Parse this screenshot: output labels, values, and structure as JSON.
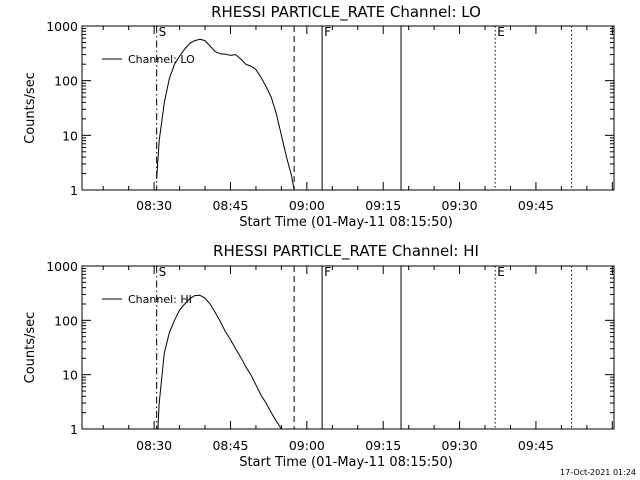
{
  "stamp": "17-Oct-2021 01:24",
  "chart_data": [
    {
      "type": "line",
      "title": "RHESSI PARTICLE_RATE Channel: LO",
      "xlabel": "Start Time (01-May-11 08:15:50)",
      "ylabel": "Counts/sec",
      "yscale": "log",
      "ylim": [
        1,
        1000
      ],
      "xlim": [
        "08:15:50",
        "10:00:20"
      ],
      "x_ticks": [
        "08:30",
        "08:45",
        "09:00",
        "09:15",
        "09:30",
        "09:45"
      ],
      "y_ticks": [
        "1",
        "10",
        "100",
        "1000"
      ],
      "legend": {
        "label": "Channel: LO",
        "position": "top-left"
      },
      "markers": [
        {
          "label": "S",
          "time": "08:30:30",
          "style": "dash-dot"
        },
        {
          "label": "",
          "time": "08:57:30",
          "style": "dashed"
        },
        {
          "label": "F",
          "time": "09:03:00",
          "style": "solid"
        },
        {
          "label": "",
          "time": "09:18:30",
          "style": "solid"
        },
        {
          "label": "E",
          "time": "09:37:00",
          "style": "dotted"
        },
        {
          "label": "",
          "time": "09:52:00",
          "style": "dotted"
        }
      ],
      "series": [
        {
          "x": [
            "08:30:30",
            "08:31:00",
            "08:32:00",
            "08:33:00",
            "08:34:00",
            "08:35:00",
            "08:36:00",
            "08:37:00",
            "08:38:00",
            "08:39:00",
            "08:40:00",
            "08:41:00",
            "08:42:00",
            "08:43:00",
            "08:44:00",
            "08:45:00",
            "08:46:00",
            "08:47:00",
            "08:48:00",
            "08:49:00",
            "08:50:00",
            "08:51:00",
            "08:52:00",
            "08:53:00",
            "08:54:00",
            "08:55:00",
            "08:56:00",
            "08:57:00",
            "08:57:30"
          ],
          "values": [
            1.6,
            8,
            40,
            110,
            200,
            280,
            380,
            480,
            540,
            570,
            540,
            430,
            340,
            310,
            305,
            290,
            300,
            250,
            200,
            185,
            160,
            115,
            78,
            50,
            25,
            10,
            4,
            1.8,
            1
          ]
        }
      ]
    },
    {
      "type": "line",
      "title": "RHESSI PARTICLE_RATE Channel: HI",
      "xlabel": "Start Time (01-May-11 08:15:50)",
      "ylabel": "Counts/sec",
      "yscale": "log",
      "ylim": [
        1,
        1000
      ],
      "xlim": [
        "08:15:50",
        "10:00:20"
      ],
      "x_ticks": [
        "08:30",
        "08:45",
        "09:00",
        "09:15",
        "09:30",
        "09:45"
      ],
      "y_ticks": [
        "1",
        "10",
        "100",
        "1000"
      ],
      "legend": {
        "label": "Channel: HI",
        "position": "top-left"
      },
      "markers": [
        {
          "label": "S",
          "time": "08:30:30",
          "style": "dash-dot"
        },
        {
          "label": "",
          "time": "08:57:30",
          "style": "dashed"
        },
        {
          "label": "F",
          "time": "09:03:00",
          "style": "solid"
        },
        {
          "label": "",
          "time": "09:18:30",
          "style": "solid"
        },
        {
          "label": "E",
          "time": "09:37:00",
          "style": "dotted"
        },
        {
          "label": "",
          "time": "09:52:00",
          "style": "dotted"
        }
      ],
      "series": [
        {
          "x": [
            "08:30:45",
            "08:31:00",
            "08:32:00",
            "08:33:00",
            "08:34:00",
            "08:35:00",
            "08:36:00",
            "08:37:00",
            "08:38:00",
            "08:39:00",
            "08:40:00",
            "08:41:00",
            "08:42:00",
            "08:43:00",
            "08:44:00",
            "08:45:00",
            "08:46:00",
            "08:47:00",
            "08:48:00",
            "08:49:00",
            "08:50:00",
            "08:51:00",
            "08:52:00",
            "08:53:00",
            "08:54:00",
            "08:55:00"
          ],
          "values": [
            1,
            3,
            25,
            60,
            100,
            155,
            200,
            250,
            285,
            290,
            255,
            200,
            140,
            95,
            62,
            44,
            30,
            21,
            14,
            10,
            6.5,
            4.2,
            3,
            2,
            1.4,
            1
          ]
        }
      ]
    }
  ]
}
